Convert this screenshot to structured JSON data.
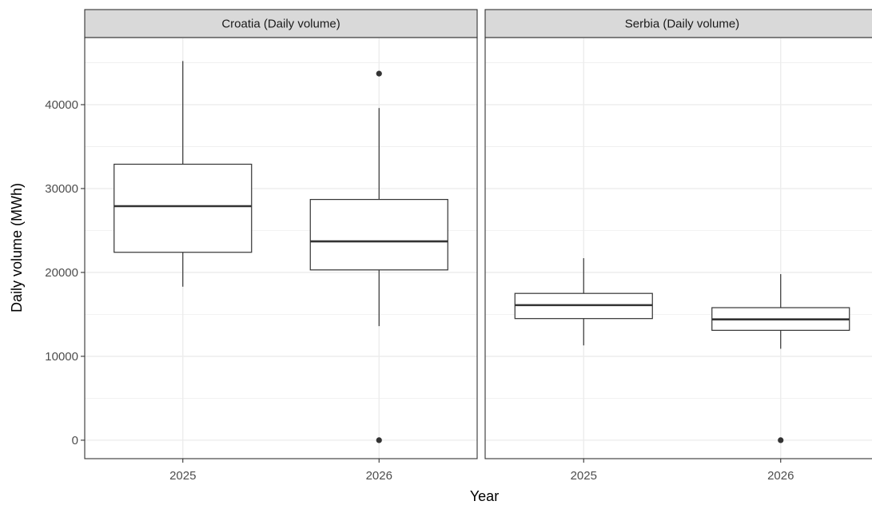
{
  "chart_data": {
    "type": "boxplot",
    "xlabel": "Year",
    "ylabel": "Daily volume (MWh)",
    "ylim": [
      -2200,
      48000
    ],
    "yticks": [
      0,
      10000,
      20000,
      30000,
      40000
    ],
    "grid": true,
    "colors": {
      "box_fill": "#ffffff",
      "box_line": "#333333",
      "strip_fill": "#d9d9d9",
      "panel_border": "#333333",
      "grid": "#ebebeb"
    },
    "categories": [
      "2025",
      "2026"
    ],
    "panels": [
      {
        "strip": "Croatia (Daily volume)",
        "boxes": [
          {
            "x": "2025",
            "min": 18300,
            "q1": 22400,
            "median": 27900,
            "q3": 32900,
            "max": 45200,
            "outliers": []
          },
          {
            "x": "2026",
            "min": 13600,
            "q1": 20300,
            "median": 23700,
            "q3": 28700,
            "max": 39600,
            "outliers": [
              43700,
              0
            ]
          }
        ]
      },
      {
        "strip": "Serbia (Daily volume)",
        "boxes": [
          {
            "x": "2025",
            "min": 11300,
            "q1": 14500,
            "median": 16100,
            "q3": 17500,
            "max": 21700,
            "outliers": []
          },
          {
            "x": "2026",
            "min": 10900,
            "q1": 13100,
            "median": 14400,
            "q3": 15800,
            "max": 19800,
            "outliers": [
              0
            ]
          }
        ]
      }
    ]
  }
}
